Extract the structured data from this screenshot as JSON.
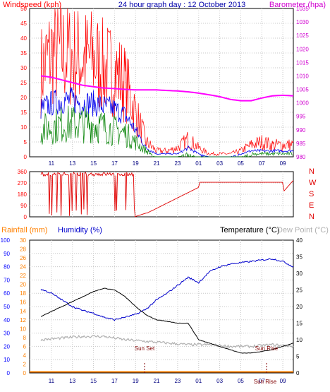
{
  "colors": {
    "gust": "#ff0000",
    "wind": "#0000ee",
    "windavg": "#008000",
    "baro": "#ff00ff",
    "direction": "#e00000",
    "rain": "#ff8000",
    "humidity": "#0000cc",
    "temperature": "#000000",
    "dewpoint": "#b0b0b0",
    "axis_tick_red": "#ff0000",
    "axis_tick_magenta": "#d000d0",
    "axis_tick_blue": "#0000ff",
    "axis_tick_orange": "#ff8000"
  },
  "chart_data": [
    {
      "type": "line",
      "title_left": "Windspeed (kph)",
      "title_center": "24 hour graph day : 12 October 2013",
      "title_right": "Barometer (hpa)",
      "x_tick_labels": [
        "11",
        "13",
        "15",
        "17",
        "19",
        "21",
        "23",
        "01",
        "03",
        "05",
        "07",
        "09"
      ],
      "y_left_ticks": [
        "0",
        "5",
        "10",
        "15",
        "20",
        "25",
        "30",
        "35",
        "40",
        "45",
        "50"
      ],
      "y_right_ticks": [
        "980",
        "985",
        "990",
        "995",
        "1000",
        "1005",
        "1010",
        "1015",
        "1020",
        "1025",
        "1030",
        "1035"
      ],
      "ylim_left": [
        0,
        50
      ],
      "ylim_right": [
        980,
        1035
      ],
      "series": [
        {
          "name": "",
          "role": "gust",
          "x": [
            0,
            1,
            2,
            3,
            4,
            5,
            6,
            7,
            8,
            9,
            10,
            11,
            12,
            13,
            14,
            15,
            16,
            17,
            18,
            19,
            20,
            21,
            22,
            23,
            24
          ],
          "values": [
            29,
            35,
            35,
            34,
            33,
            33,
            30,
            29,
            25,
            15,
            5,
            2,
            2,
            3,
            6,
            3,
            1,
            1,
            1,
            2,
            4,
            5,
            4,
            4,
            4
          ]
        },
        {
          "name": "",
          "role": "wind",
          "x": [
            0,
            1,
            2,
            3,
            4,
            5,
            6,
            7,
            8,
            9,
            10,
            11,
            12,
            13,
            14,
            15,
            16,
            17,
            18,
            19,
            20,
            21,
            22,
            23,
            24
          ],
          "values": [
            16,
            18,
            19,
            19,
            18,
            18,
            17,
            16,
            14,
            9,
            3,
            1,
            1,
            1,
            3,
            1,
            0,
            0,
            0,
            1,
            2,
            2,
            2,
            2,
            2
          ]
        },
        {
          "name": "",
          "role": "windavg",
          "x": [
            0,
            1,
            2,
            3,
            4,
            5,
            6,
            7,
            8,
            9,
            10,
            11,
            12,
            13,
            14,
            15,
            16,
            17,
            18,
            19,
            20,
            21,
            22,
            23,
            24
          ],
          "values": [
            9,
            10,
            11,
            11,
            11,
            11,
            10,
            9,
            8,
            5,
            2,
            0,
            0,
            0,
            1,
            0,
            0,
            0,
            0,
            0,
            1,
            1,
            1,
            1,
            1
          ]
        },
        {
          "name": "",
          "role": "barometer",
          "x": [
            0,
            1,
            2,
            3,
            4,
            5,
            6,
            7,
            8,
            9,
            10,
            11,
            12,
            13,
            14,
            15,
            16,
            17,
            18,
            19,
            20,
            21,
            22,
            23,
            24
          ],
          "values": [
            1010,
            1009.5,
            1008.5,
            1007.5,
            1006.5,
            1006,
            1005.5,
            1005.3,
            1005,
            1004.8,
            1004.8,
            1004.8,
            1004.6,
            1004.4,
            1004.1,
            1003.6,
            1003,
            1002.3,
            1001.3,
            1000.8,
            1000.8,
            1001.8,
            1002.6,
            1002.8,
            1002.6
          ]
        }
      ]
    },
    {
      "type": "line",
      "y_left_ticks": [
        "0",
        "90",
        "180",
        "270",
        "360"
      ],
      "ylim": [
        0,
        360
      ],
      "compass_labels": [
        "N",
        "W",
        "S",
        "E",
        "N"
      ],
      "series": [
        {
          "name": "",
          "role": "direction",
          "x": [
            0,
            8.8,
            8.9,
            10,
            10.1,
            15,
            15.1,
            23,
            23.1,
            24
          ],
          "values": [
            340,
            340,
            0,
            30,
            30,
            235,
            275,
            275,
            205,
            290
          ]
        }
      ]
    },
    {
      "type": "line",
      "title_rainfall": "Rainfall (mm)",
      "title_humidity": "Humidity (%)",
      "title_temperature": "Temperature (°C)",
      "title_dewpoint": "Dew Point (°C)",
      "y_humidity_ticks": [
        "0",
        "10",
        "20",
        "30",
        "40",
        "50",
        "60",
        "70",
        "80",
        "90",
        "100"
      ],
      "y_rain_ticks": [
        "0",
        "2",
        "4",
        "6",
        "8",
        "10",
        "12",
        "14",
        "16",
        "18",
        "20",
        "22",
        "24",
        "26",
        "28",
        "30"
      ],
      "y_temp_ticks": [
        "0",
        "5",
        "10",
        "15",
        "20",
        "25",
        "30",
        "35",
        "40"
      ],
      "ylim_humidity": [
        0,
        100
      ],
      "ylim_temperature": [
        0,
        40
      ],
      "series": [
        {
          "name": "",
          "role": "temperature",
          "x": [
            0,
            1,
            2,
            3,
            4,
            5,
            6,
            7,
            8,
            9,
            10,
            11,
            12,
            13,
            14,
            15,
            16,
            17,
            18,
            19,
            20,
            21,
            22,
            23,
            24
          ],
          "values": [
            17,
            18.5,
            20,
            21.5,
            23,
            24.5,
            25.5,
            25,
            23,
            20,
            17.5,
            16,
            15.5,
            15,
            15,
            10,
            9,
            8,
            7,
            6,
            6,
            6.5,
            7,
            8,
            9
          ]
        },
        {
          "name": "",
          "role": "humidity",
          "x": [
            0,
            1,
            2,
            3,
            4,
            5,
            6,
            7,
            8,
            9,
            10,
            11,
            12,
            13,
            14,
            15,
            16,
            17,
            18,
            19,
            20,
            21,
            22,
            23,
            24
          ],
          "values": [
            63,
            60,
            55,
            50,
            47,
            45,
            42,
            40,
            42,
            44,
            48,
            55,
            60,
            66,
            72,
            68,
            76,
            80,
            82,
            83,
            84,
            85,
            86,
            84,
            80
          ]
        },
        {
          "name": "",
          "role": "dewpoint",
          "x": [
            0,
            2,
            4,
            6,
            8,
            10,
            12,
            14,
            16,
            18,
            20,
            22,
            24
          ],
          "values": [
            10,
            10.5,
            11,
            11,
            10,
            9.5,
            9,
            8.5,
            8.5,
            8,
            8,
            8.5,
            8
          ]
        },
        {
          "name": "",
          "role": "rainfall",
          "x": [
            0,
            24
          ],
          "values": [
            0,
            0
          ]
        }
      ],
      "annotations": [
        "Sun Set",
        "Sun Rise",
        "Sun Rise"
      ]
    }
  ]
}
